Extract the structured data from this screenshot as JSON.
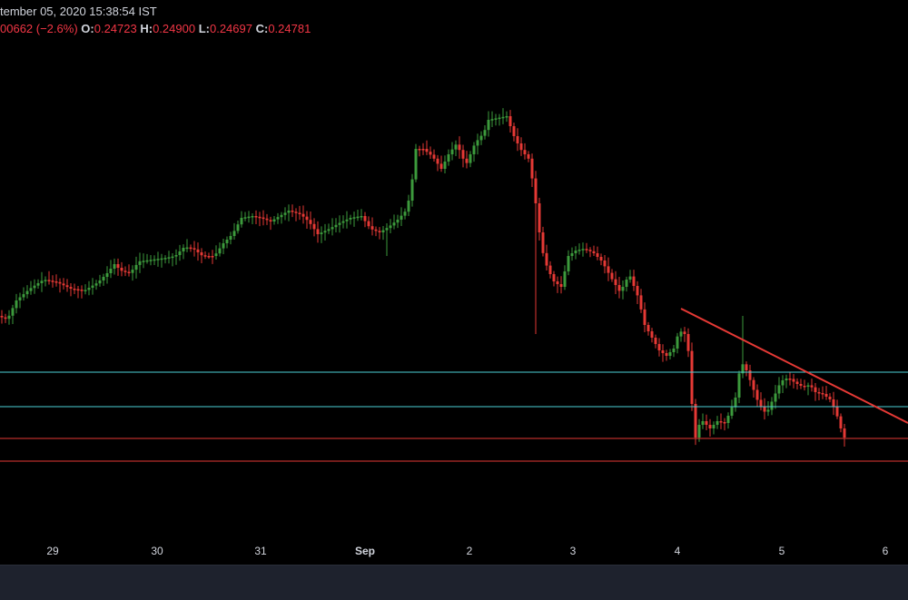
{
  "header": {
    "datetime": "tember 05, 2020 15:38:54 IST",
    "change": "00662 (−2.6%)",
    "open_label": "O:",
    "open": "0.24723",
    "high_label": "H:",
    "high": "0.24900",
    "low_label": "L:",
    "low": "0.24697",
    "close_label": "C:",
    "close": "0.24781"
  },
  "x_axis": {
    "ticks": [
      {
        "label": "29",
        "bold": false
      },
      {
        "label": "30",
        "bold": false
      },
      {
        "label": "31",
        "bold": false
      },
      {
        "label": "Sep",
        "bold": true
      },
      {
        "label": "2",
        "bold": false
      },
      {
        "label": "3",
        "bold": false
      },
      {
        "label": "4",
        "bold": false
      },
      {
        "label": "5",
        "bold": false
      },
      {
        "label": "6",
        "bold": false
      }
    ]
  },
  "colors": {
    "up": "#26a69a",
    "up_candle": "#3c9a3c",
    "down": "#e53935",
    "support_cyan": "#4dd0d6",
    "support_red": "#e53935",
    "trendline": "#e53935",
    "background": "#000000"
  },
  "chart_data": {
    "type": "candlestick",
    "x_ticks": [
      "29",
      "30",
      "31",
      "Sep",
      "2",
      "3",
      "4",
      "5",
      "6"
    ],
    "last_ohlc": {
      "open": 0.24723,
      "high": 0.249,
      "low": 0.24697,
      "close": 0.24781
    },
    "horizontal_lines": [
      {
        "color": "cyan",
        "style": "solid"
      },
      {
        "color": "cyan",
        "style": "solid"
      },
      {
        "color": "red",
        "style": "solid"
      },
      {
        "color": "red",
        "style": "solid"
      }
    ],
    "trendline": {
      "color": "red",
      "direction": "descending"
    },
    "grid": false
  }
}
